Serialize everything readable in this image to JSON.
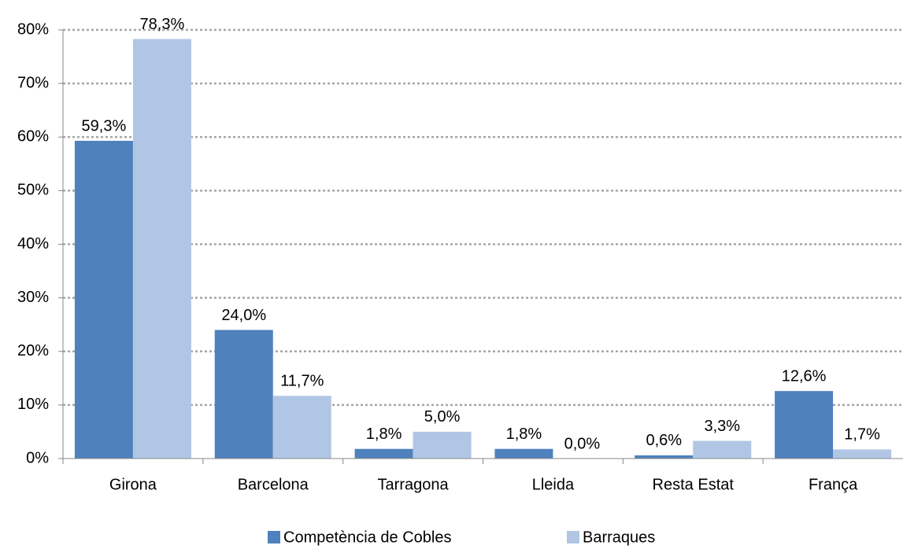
{
  "chart_data": {
    "type": "bar",
    "categories": [
      "Girona",
      "Barcelona",
      "Tarragona",
      "Lleida",
      "Resta Estat",
      "França"
    ],
    "series": [
      {
        "name": "Competència de Cobles",
        "color": "#4f81bd",
        "values": [
          59.3,
          24.0,
          1.8,
          1.8,
          0.6,
          12.6
        ],
        "value_labels": [
          "59,3%",
          "24,0%",
          "1,8%",
          "1,8%",
          "0,6%",
          "12,6%"
        ]
      },
      {
        "name": "Barraques",
        "color": "#b0c6e4",
        "values": [
          78.3,
          11.7,
          5.0,
          0.0,
          3.3,
          1.7
        ],
        "value_labels": [
          "78,3%",
          "11,7%",
          "5,0%",
          "0,0%",
          "3,3%",
          "1,7%"
        ]
      }
    ],
    "ylim": [
      0,
      80
    ],
    "yticks": [
      {
        "value": 0,
        "label": "0%"
      },
      {
        "value": 10,
        "label": "10%"
      },
      {
        "value": 20,
        "label": "20%"
      },
      {
        "value": 30,
        "label": "30%"
      },
      {
        "value": 40,
        "label": "40%"
      },
      {
        "value": 50,
        "label": "50%"
      },
      {
        "value": 60,
        "label": "60%"
      },
      {
        "value": 70,
        "label": "70%"
      },
      {
        "value": 80,
        "label": "80%"
      }
    ],
    "grid": true,
    "legend": "bottom"
  }
}
